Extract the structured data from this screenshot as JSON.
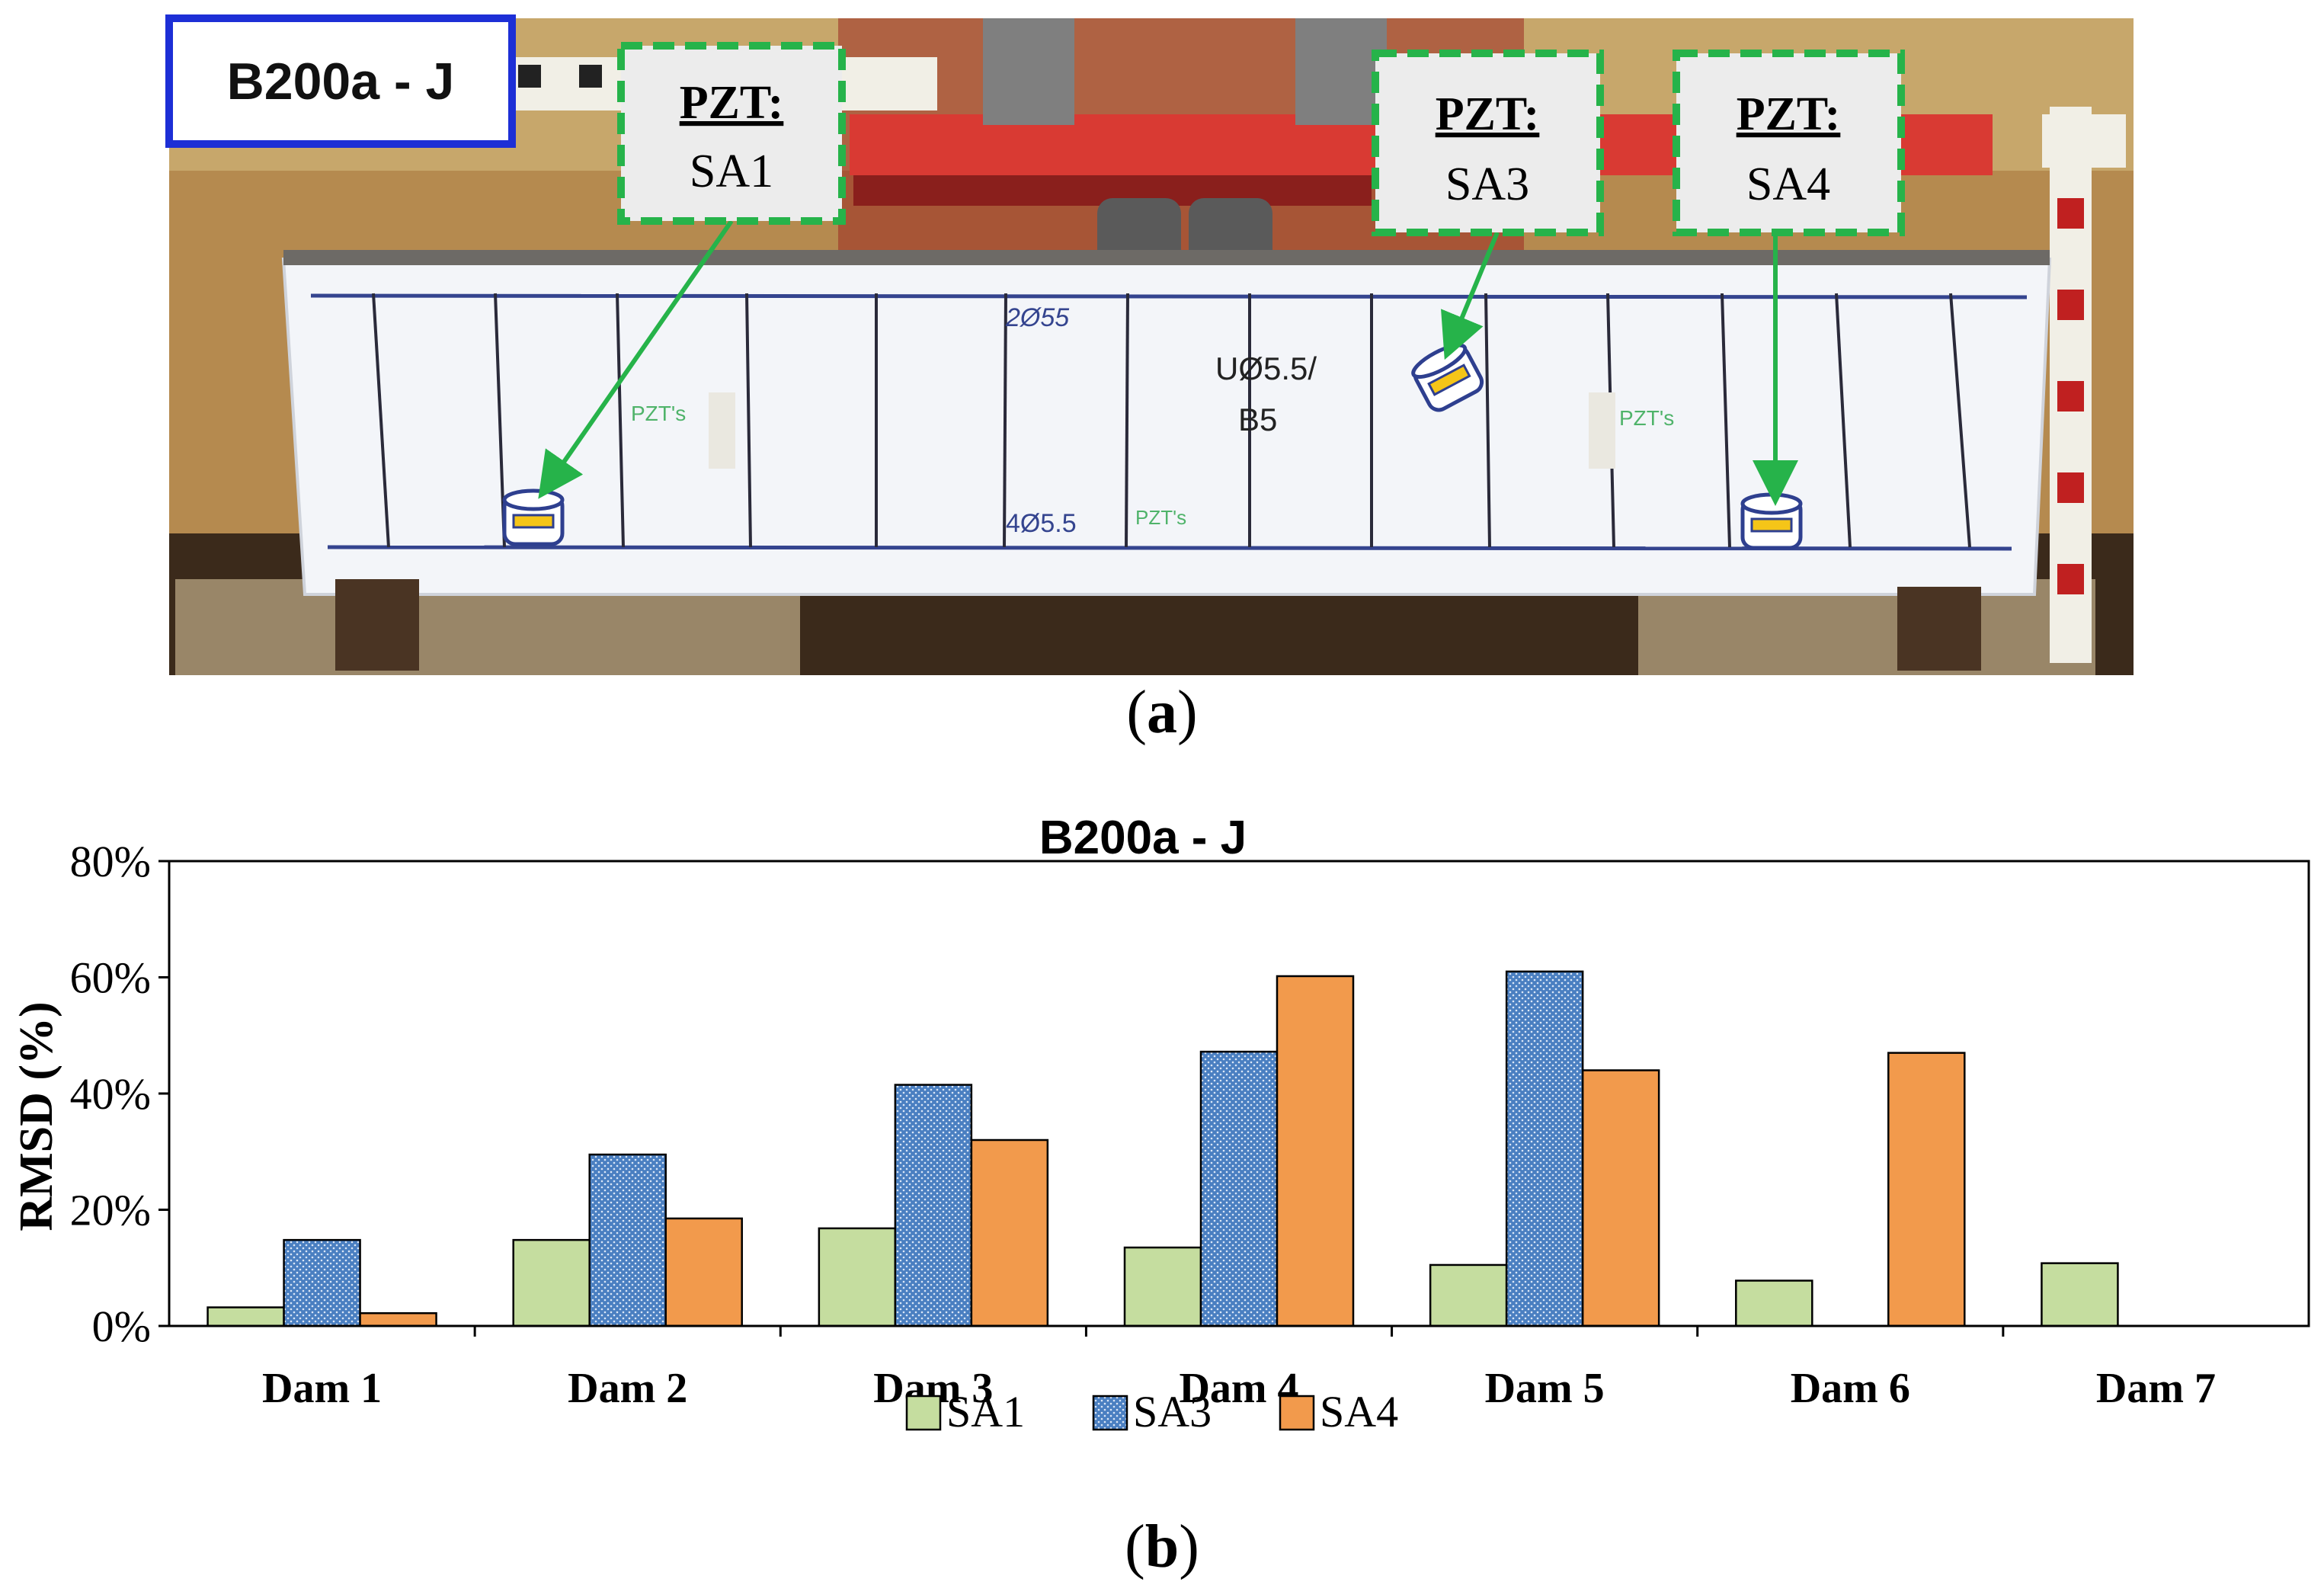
{
  "photo": {
    "beam_id_label": "B200a - J",
    "pzt_boxes": [
      {
        "heading": "PZT:",
        "sensor": "SA1"
      },
      {
        "heading": "PZT:",
        "sensor": "SA3"
      },
      {
        "heading": "PZT:",
        "sensor": "SA4"
      }
    ],
    "beam_markings": {
      "top_rebar": "2Ø55",
      "stirrup_label_1": "UØ5.5/",
      "stirrup_label_2": "B5",
      "bottom_rebar": "4Ø5.5",
      "pzt_note_left": "PZT's",
      "pzt_note_mid": "PZT's",
      "pzt_note_right": "PZT's"
    },
    "caption_open": "(",
    "caption_letter": "a",
    "caption_close": ")"
  },
  "chart_data": {
    "type": "bar",
    "title": "B200a - J",
    "xlabel": "",
    "ylabel": "RMSD (%)",
    "ylim": [
      0,
      80
    ],
    "yticks": [
      "0%",
      "20%",
      "40%",
      "60%",
      "80%"
    ],
    "ytick_values": [
      0,
      20,
      40,
      60,
      80
    ],
    "categories": [
      "Dam 1",
      "Dam 2",
      "Dam 3",
      "Dam 4",
      "Dam 5",
      "Dam 6",
      "Dam 7"
    ],
    "series": [
      {
        "name": "SA1",
        "color": "#c5dd9f",
        "values": [
          3.2,
          14.8,
          16.8,
          13.5,
          10.5,
          7.8,
          10.8
        ]
      },
      {
        "name": "SA3",
        "color": "#4a7fc1",
        "values": [
          14.8,
          29.5,
          41.5,
          47.2,
          61.0,
          null,
          null
        ]
      },
      {
        "name": "SA4",
        "color": "#f29a4c",
        "values": [
          2.2,
          18.5,
          32.0,
          60.2,
          44.0,
          47.0,
          null
        ]
      }
    ],
    "legend_position": "bottom-center",
    "caption_open": "(",
    "caption_letter": "b",
    "caption_close": ")"
  }
}
